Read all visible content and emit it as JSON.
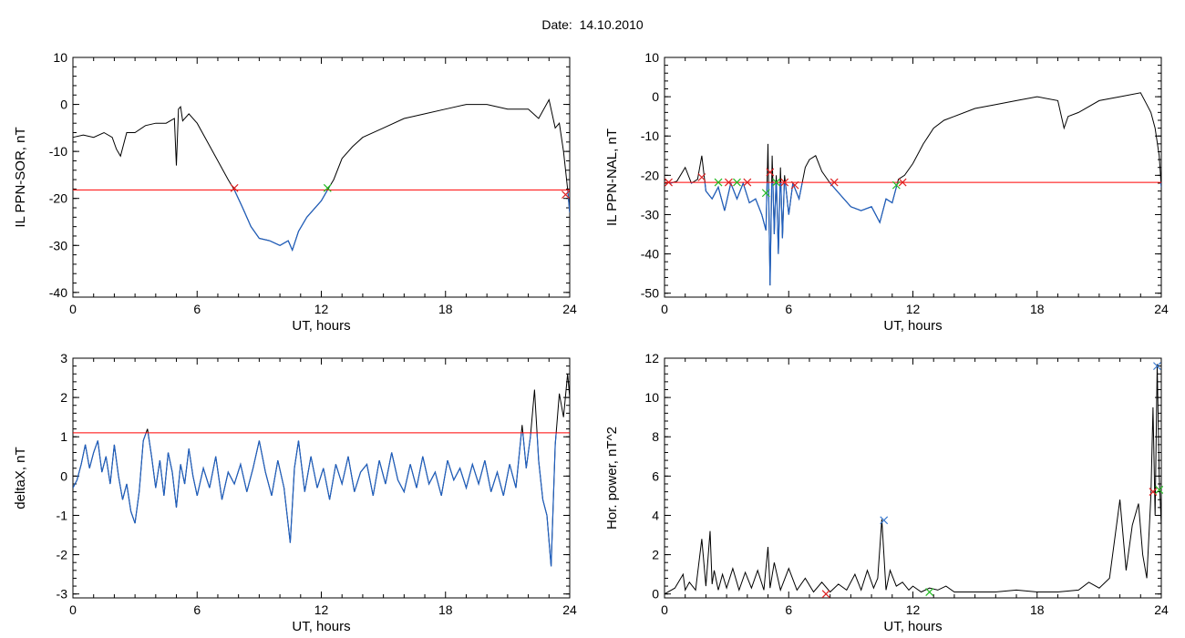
{
  "title": "Date:  14.10.2010",
  "colors": {
    "ink": "#000000",
    "threshold": "#ff0000",
    "below": "#1f5fbf",
    "cross_red": "#dd2222",
    "cross_green": "#22bb22",
    "cross_blue": "#3a7ad0"
  },
  "chart_data": [
    {
      "type": "line",
      "xlabel": "UT, hours",
      "ylabel": "IL PPN-SOR, nT",
      "xlim": [
        0,
        24
      ],
      "ylim": [
        -41,
        10
      ],
      "xticks": [
        0,
        6,
        12,
        18,
        24
      ],
      "yticks": [
        10,
        0,
        -10,
        -20,
        -30,
        -40
      ],
      "threshold": -18.2,
      "series": [
        {
          "x": [
            0,
            0.5,
            1,
            1.5,
            1.9,
            2.1,
            2.3,
            2.6,
            3,
            3.5,
            4,
            4.5,
            4.9,
            5.0,
            5.1,
            5.2,
            5.3,
            5.6,
            6,
            6.5,
            7,
            7.5,
            7.8,
            8.2,
            8.6,
            9,
            9.5,
            10,
            10.4,
            10.6,
            10.9,
            11.3,
            11.7,
            12,
            12.3,
            12.6,
            13,
            13.5,
            14,
            15,
            16,
            17,
            18,
            19,
            20,
            21,
            22,
            22.5,
            23,
            23.3,
            23.5,
            23.7,
            23.9,
            24
          ],
          "y": [
            -7,
            -6.5,
            -7,
            -6,
            -7,
            -9.5,
            -11,
            -6,
            -6,
            -4.5,
            -4,
            -4,
            -3,
            -13,
            -1,
            -0.5,
            -3.5,
            -2,
            -4,
            -8,
            -12,
            -16,
            -18.2,
            -22,
            -26,
            -28.5,
            -29,
            -30,
            -29,
            -31,
            -27,
            -24,
            -22,
            -20.5,
            -18.2,
            -16,
            -11.5,
            -9,
            -7,
            -5,
            -3,
            -2,
            -1,
            0,
            0,
            -1,
            -1,
            -3,
            1,
            -5,
            -4,
            -10,
            -18,
            -23
          ]
        }
      ],
      "markers": [
        {
          "x": 7.8,
          "y": -17.8,
          "color": "red"
        },
        {
          "x": 12.3,
          "y": -17.8,
          "color": "green"
        },
        {
          "x": 23.8,
          "y": -19.2,
          "color": "red"
        }
      ]
    },
    {
      "type": "line",
      "xlabel": "UT, hours",
      "ylabel": "IL PPN-NAL, nT",
      "xlim": [
        0,
        24
      ],
      "ylim": [
        -51,
        10
      ],
      "xticks": [
        0,
        6,
        12,
        18,
        24
      ],
      "yticks": [
        10,
        0,
        -10,
        -20,
        -30,
        -40,
        -50
      ],
      "threshold": -21.8,
      "series": [
        {
          "x": [
            0,
            0.3,
            0.6,
            1,
            1.3,
            1.6,
            1.8,
            2,
            2.3,
            2.6,
            2.9,
            3.2,
            3.5,
            3.8,
            4.1,
            4.4,
            4.7,
            4.9,
            5.0,
            5.1,
            5.2,
            5.3,
            5.4,
            5.5,
            5.6,
            5.7,
            5.8,
            6,
            6.2,
            6.5,
            6.8,
            7,
            7.3,
            7.6,
            8,
            8.5,
            9,
            9.5,
            10,
            10.4,
            10.7,
            11,
            11.3,
            11.6,
            12,
            12.5,
            13,
            13.5,
            14,
            15,
            16,
            17,
            18,
            19,
            19.3,
            19.5,
            20,
            21,
            22,
            23,
            23.3,
            23.5,
            23.7,
            23.9,
            24
          ],
          "y": [
            -21,
            -22,
            -21.5,
            -18,
            -22,
            -21,
            -15,
            -24,
            -26,
            -23,
            -29,
            -22,
            -26,
            -22,
            -27,
            -26,
            -30,
            -34,
            -12,
            -48,
            -15,
            -35,
            -20,
            -40,
            -18,
            -36,
            -20,
            -30,
            -22,
            -26,
            -18,
            -16,
            -15,
            -19,
            -22,
            -25,
            -28,
            -29,
            -28,
            -32,
            -26,
            -27,
            -21,
            -20,
            -17,
            -12,
            -8,
            -6,
            -5,
            -3,
            -2,
            -1,
            0,
            -1,
            -8,
            -5,
            -4,
            -1,
            0,
            1,
            -2,
            -4,
            -8,
            -15,
            -23
          ]
        }
      ],
      "markers": [
        {
          "x": 0.2,
          "y": -21.8,
          "color": "red"
        },
        {
          "x": 1.8,
          "y": -20.5,
          "color": "red"
        },
        {
          "x": 2.6,
          "y": -21.8,
          "color": "green"
        },
        {
          "x": 3.1,
          "y": -21.8,
          "color": "red"
        },
        {
          "x": 3.5,
          "y": -21.8,
          "color": "green"
        },
        {
          "x": 4.0,
          "y": -21.8,
          "color": "red"
        },
        {
          "x": 4.9,
          "y": -24.5,
          "color": "green"
        },
        {
          "x": 5.1,
          "y": -19.2,
          "color": "red"
        },
        {
          "x": 5.4,
          "y": -21.8,
          "color": "green"
        },
        {
          "x": 5.8,
          "y": -21.8,
          "color": "red"
        },
        {
          "x": 6.3,
          "y": -22.5,
          "color": "red"
        },
        {
          "x": 8.2,
          "y": -21.8,
          "color": "red"
        },
        {
          "x": 11.2,
          "y": -22.5,
          "color": "green"
        },
        {
          "x": 11.5,
          "y": -21.8,
          "color": "red"
        }
      ]
    },
    {
      "type": "line",
      "xlabel": "UT, hours",
      "ylabel": "deltaX, nT",
      "xlim": [
        0,
        24
      ],
      "ylim": [
        -3.1,
        3
      ],
      "xticks": [
        0,
        6,
        12,
        18,
        24
      ],
      "yticks": [
        3,
        2,
        1,
        0,
        -1,
        -2,
        -3
      ],
      "threshold": 1.1,
      "series": [
        {
          "x": [
            0,
            0.2,
            0.4,
            0.6,
            0.8,
            1,
            1.2,
            1.4,
            1.6,
            1.8,
            2,
            2.2,
            2.4,
            2.6,
            2.8,
            3,
            3.2,
            3.4,
            3.6,
            3.8,
            4,
            4.2,
            4.4,
            4.6,
            4.8,
            5,
            5.2,
            5.4,
            5.6,
            5.8,
            6,
            6.3,
            6.6,
            6.9,
            7.2,
            7.5,
            7.8,
            8.1,
            8.4,
            8.7,
            9,
            9.3,
            9.6,
            9.9,
            10.2,
            10.5,
            10.7,
            10.9,
            11.2,
            11.5,
            11.8,
            12.1,
            12.4,
            12.7,
            13,
            13.3,
            13.6,
            13.9,
            14.2,
            14.5,
            14.8,
            15.1,
            15.4,
            15.7,
            16,
            16.3,
            16.6,
            16.9,
            17.2,
            17.5,
            17.8,
            18.1,
            18.4,
            18.7,
            19,
            19.3,
            19.6,
            19.9,
            20.2,
            20.5,
            20.8,
            21.1,
            21.4,
            21.7,
            21.9,
            22.1,
            22.3,
            22.5,
            22.7,
            22.9,
            23.1,
            23.3,
            23.5,
            23.7,
            23.9,
            24
          ],
          "y": [
            -0.3,
            -0.1,
            0.3,
            0.8,
            0.2,
            0.6,
            0.9,
            0.1,
            0.5,
            -0.2,
            0.8,
            0.0,
            -0.6,
            -0.2,
            -0.9,
            -1.2,
            -0.4,
            0.9,
            1.2,
            0.5,
            -0.3,
            0.4,
            -0.5,
            0.6,
            0.1,
            -0.8,
            0.3,
            -0.2,
            0.7,
            0.0,
            -0.5,
            0.2,
            -0.3,
            0.5,
            -0.6,
            0.1,
            -0.2,
            0.3,
            -0.4,
            0.2,
            0.9,
            0.1,
            -0.5,
            0.4,
            -0.3,
            -1.7,
            0.2,
            0.9,
            -0.4,
            0.5,
            -0.3,
            0.2,
            -0.6,
            0.3,
            -0.2,
            0.5,
            -0.4,
            0.1,
            0.3,
            -0.5,
            0.4,
            -0.2,
            0.6,
            -0.1,
            -0.4,
            0.3,
            -0.3,
            0.5,
            -0.2,
            0.1,
            -0.5,
            0.4,
            -0.1,
            0.2,
            -0.3,
            0.3,
            -0.2,
            0.4,
            -0.4,
            0.1,
            -0.5,
            0.3,
            -0.3,
            1.3,
            0.2,
            1.0,
            2.2,
            0.4,
            -0.6,
            -1.0,
            -2.3,
            0.8,
            2.1,
            1.5,
            2.6,
            2.0
          ]
        }
      ],
      "markers": []
    },
    {
      "type": "line",
      "xlabel": "UT, hours",
      "ylabel": "Hor. power, nT^2",
      "xlim": [
        0,
        24
      ],
      "ylim": [
        -0.2,
        12
      ],
      "xticks": [
        0,
        6,
        12,
        18,
        24
      ],
      "yticks": [
        12,
        10,
        8,
        6,
        4,
        2,
        0
      ],
      "threshold": null,
      "series": [
        {
          "x": [
            0,
            0.5,
            0.9,
            1,
            1.2,
            1.5,
            1.8,
            2,
            2.2,
            2.3,
            2.4,
            2.6,
            2.8,
            3,
            3.3,
            3.6,
            3.9,
            4.2,
            4.5,
            4.8,
            5,
            5.1,
            5.3,
            5.6,
            6,
            6.4,
            6.8,
            7.2,
            7.6,
            8,
            8.4,
            8.8,
            9.2,
            9.5,
            9.8,
            10.1,
            10.3,
            10.5,
            10.6,
            10.7,
            10.9,
            11.2,
            11.5,
            11.8,
            12,
            12.4,
            12.8,
            13.2,
            13.6,
            14,
            15,
            16,
            17,
            18,
            19,
            20,
            20.5,
            21,
            21.5,
            22,
            22.3,
            22.6,
            22.9,
            23.1,
            23.3,
            23.5,
            23.6,
            23.7,
            23.8,
            23.9,
            24
          ],
          "y": [
            0,
            0.3,
            1.0,
            0.2,
            0.6,
            0.2,
            2.8,
            0.4,
            3.2,
            0.5,
            1.2,
            0.2,
            1.0,
            0.3,
            1.3,
            0.2,
            1.1,
            0.3,
            1.2,
            0.2,
            2.4,
            0.3,
            1.6,
            0.2,
            1.3,
            0.2,
            0.8,
            0.1,
            0.6,
            0.1,
            0.5,
            0.2,
            1.0,
            0.2,
            1.2,
            0.3,
            0.8,
            3.8,
            2.0,
            0.2,
            1.2,
            0.4,
            0.6,
            0.2,
            0.4,
            0.1,
            0.3,
            0.2,
            0.4,
            0.1,
            0.1,
            0.1,
            0.2,
            0.1,
            0.1,
            0.2,
            0.6,
            0.3,
            0.8,
            4.8,
            1.2,
            3.5,
            4.6,
            2.0,
            0.8,
            5.0,
            9.5,
            4.0,
            11.7,
            6.0,
            3.5
          ]
        }
      ],
      "markers": [
        {
          "x": 10.6,
          "y": 3.75,
          "color": "blue"
        },
        {
          "x": 23.8,
          "y": 11.6,
          "color": "blue"
        },
        {
          "x": 23.6,
          "y": 5.2,
          "color": "red"
        },
        {
          "x": 23.9,
          "y": 5.3,
          "color": "green"
        },
        {
          "x": 12.8,
          "y": 0.1,
          "color": "green"
        },
        {
          "x": 7.8,
          "y": 0.0,
          "color": "red"
        }
      ]
    }
  ]
}
